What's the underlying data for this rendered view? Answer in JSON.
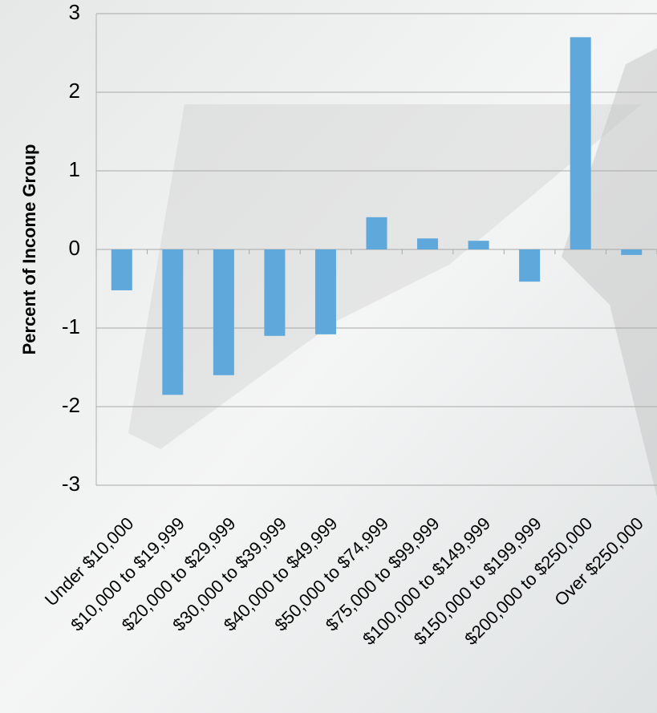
{
  "chart_data": {
    "type": "bar",
    "y_label": "Percent of Income Group",
    "categories": [
      "Under $10,000",
      "$10,000 to $19,999",
      "$20,000 to $29,999",
      "$30,000 to $39,999",
      "$40,000 to $49,999",
      "$50,000 to $74,999",
      "$75,000 to $99,999",
      "$100,000 to $149,999",
      "$150,000 to $199,999",
      "$200,000 to $250,000",
      "Over $250,000"
    ],
    "values": [
      -0.52,
      -1.85,
      -1.6,
      -1.1,
      -1.08,
      0.41,
      0.14,
      0.11,
      -0.41,
      2.7,
      -0.07
    ],
    "color": "#5fa8dc",
    "ylim": [
      -3,
      3
    ],
    "yticks": [
      -3,
      -2,
      -1,
      0,
      1,
      2,
      3
    ],
    "grid": true
  }
}
